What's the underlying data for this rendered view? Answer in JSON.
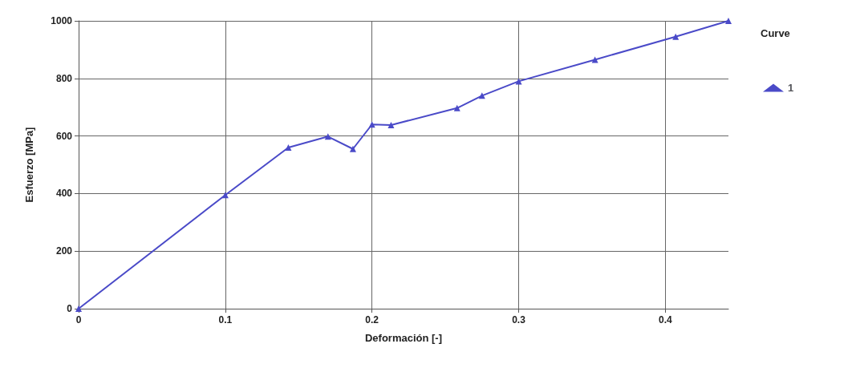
{
  "chart_data": {
    "type": "line",
    "xlabel": "Deformación [-]",
    "ylabel": "Esfuerzo [MPa]",
    "legend_title": "Curve",
    "legend": "top right",
    "grid": true,
    "marker": "triangle",
    "line_style": "solid",
    "x": [
      0,
      0.1,
      0.143,
      0.17,
      0.187,
      0.2,
      0.213,
      0.258,
      0.275,
      0.3,
      0.352,
      0.407,
      0.443
    ],
    "series": [
      {
        "name": "1",
        "color": "#4a4ac8",
        "values": [
          0,
          395,
          560,
          598,
          555,
          640,
          638,
          697,
          740,
          790,
          865,
          945,
          1000
        ]
      }
    ],
    "xlim": [
      0,
      0.443
    ],
    "xticks": [
      0,
      0.1,
      0.2,
      0.3,
      0.4
    ],
    "ylim": [
      0,
      1000
    ],
    "yticks": [
      0,
      200,
      400,
      600,
      800,
      1000
    ]
  }
}
